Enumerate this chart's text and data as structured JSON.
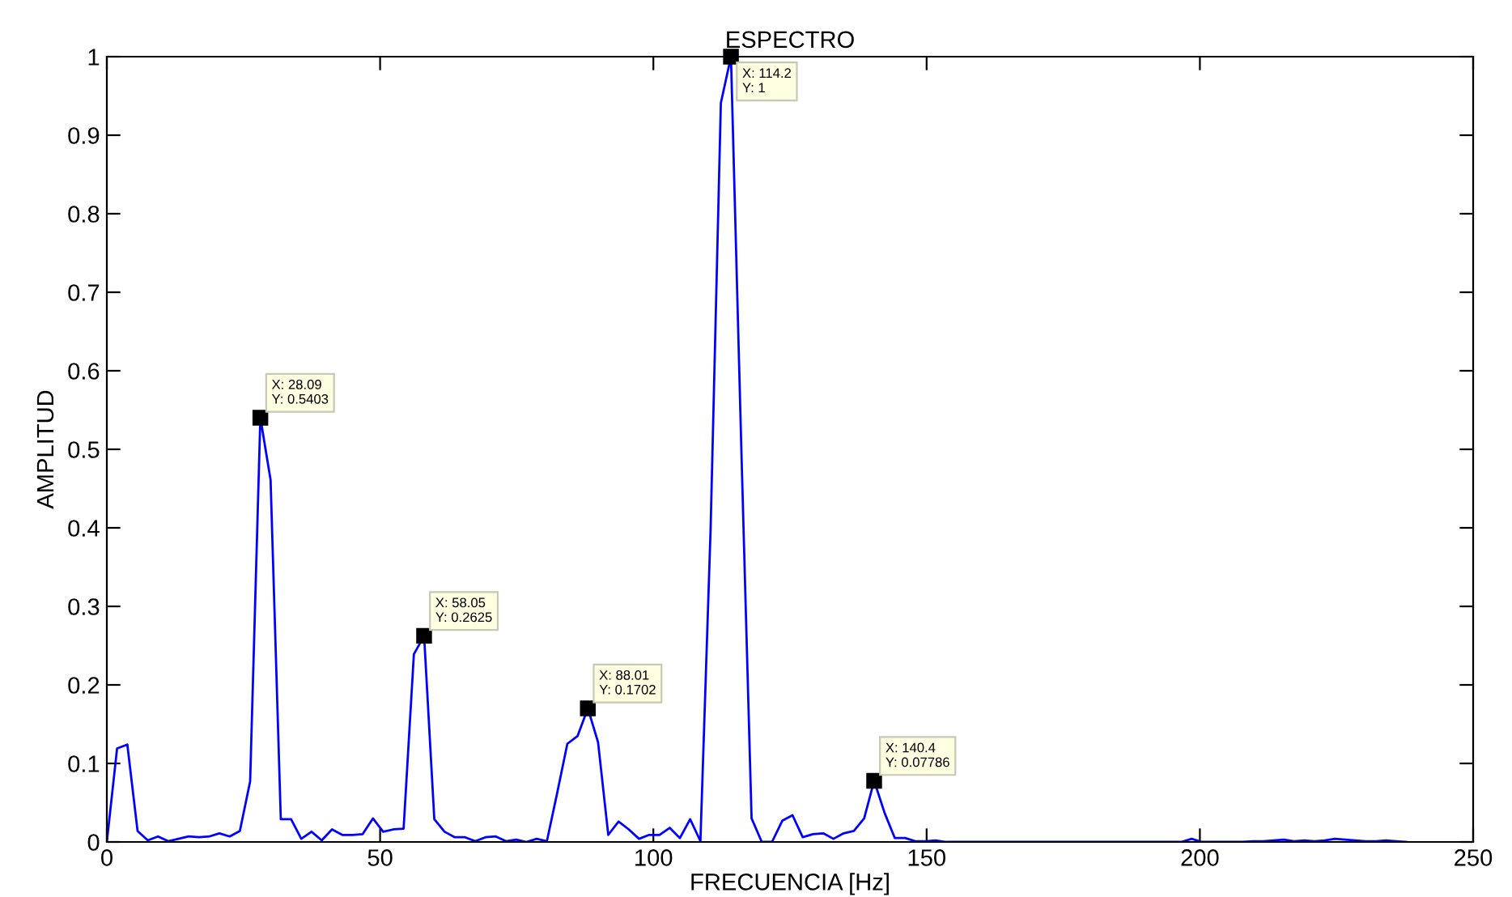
{
  "chart_data": {
    "type": "line",
    "title": "ESPECTRO",
    "xlabel": "FRECUENCIA [Hz]",
    "ylabel": "AMPLITUD",
    "x": [
      0,
      1.87,
      3.75,
      5.62,
      7.49,
      9.36,
      11.24,
      13.11,
      14.98,
      16.85,
      18.73,
      20.6,
      22.47,
      24.34,
      26.22,
      28.09,
      29.96,
      31.83,
      33.71,
      35.58,
      37.45,
      39.32,
      41.2,
      43.07,
      44.94,
      46.81,
      48.69,
      50.56,
      52.43,
      54.3,
      56.18,
      58.05,
      59.92,
      61.79,
      63.67,
      65.54,
      67.41,
      69.28,
      71.16,
      73.03,
      74.9,
      76.77,
      78.65,
      80.52,
      82.39,
      84.26,
      86.14,
      88.01,
      89.88,
      91.75,
      93.63,
      95.5,
      97.37,
      99.24,
      101.12,
      102.99,
      104.86,
      106.73,
      108.61,
      110.48,
      112.35,
      114.2,
      116.1,
      117.97,
      119.84,
      121.71,
      123.59,
      125.46,
      127.33,
      129.2,
      131.08,
      132.95,
      134.82,
      136.69,
      138.57,
      140.4,
      142.31,
      144.18,
      146.06,
      147.93,
      149.8,
      151.67,
      153.55,
      155.42,
      157.29,
      159.16,
      161.04,
      162.91,
      164.78,
      166.65,
      168.53,
      170.4,
      172.27,
      174.14,
      176.02,
      177.89,
      179.76,
      181.63,
      183.51,
      185.38,
      187.25,
      189.12,
      191.0,
      192.87,
      194.74,
      196.61,
      198.49,
      200.36,
      202.23,
      204.1,
      205.98,
      207.85,
      209.72,
      211.59,
      213.47,
      215.34,
      217.21,
      219.08,
      220.96,
      222.83,
      224.7,
      226.57,
      228.45,
      230.32,
      232.19,
      234.06,
      235.94,
      237.81
    ],
    "series": [
      {
        "color": "#0000ff",
        "values": [
          0,
          0.119,
          0.124,
          0.014,
          0.002,
          0.007,
          0.001,
          0.004,
          0.007,
          0.006,
          0.007,
          0.011,
          0.007,
          0.014,
          0.077,
          0.5403,
          0.461,
          0.029,
          0.029,
          0.004,
          0.013,
          0.002,
          0.016,
          0.009,
          0.009,
          0.01,
          0.03,
          0.013,
          0.016,
          0.017,
          0.239,
          0.2625,
          0.029,
          0.013,
          0.006,
          0.006,
          0.001,
          0.006,
          0.007,
          0.001,
          0.003,
          0,
          0.004,
          0.001,
          0.062,
          0.125,
          0.135,
          0.1702,
          0.127,
          0.009,
          0.026,
          0.016,
          0.004,
          0.009,
          0.009,
          0.018,
          0.005,
          0.029,
          0.001,
          0.4,
          0.941,
          1,
          0.5,
          0.03,
          0,
          0,
          0.027,
          0.034,
          0.006,
          0.01,
          0.011,
          0.004,
          0.011,
          0.014,
          0.03,
          0.07786,
          0.037,
          0.005,
          0.005,
          0.001,
          0.001,
          0.002,
          0,
          0,
          0,
          0,
          0,
          0,
          0,
          0,
          0,
          0,
          0,
          0,
          0,
          0,
          0,
          0,
          0,
          0,
          0,
          0,
          0,
          0,
          0,
          0,
          0.004,
          0,
          0,
          0,
          0,
          0,
          0.001,
          0.001,
          0.002,
          0.003,
          0.001,
          0.002,
          0.001,
          0.002,
          0.004,
          0.003,
          0.002,
          0.001,
          0.001,
          0.002,
          0.001,
          0
        ]
      }
    ],
    "xlim": [
      0,
      250
    ],
    "xticks": [
      0,
      50,
      100,
      150,
      200,
      250
    ],
    "ylim": [
      0,
      1
    ],
    "yticks": [
      0,
      0.1,
      0.2,
      0.3,
      0.4,
      0.5,
      0.6,
      0.7,
      0.8,
      0.9,
      1
    ],
    "grid": false,
    "marker": "none",
    "line_style": "solid",
    "annotations": [
      {
        "text": "X: 28.09\nY: 0.5403",
        "x": 28.09,
        "y": 0.5403
      },
      {
        "text": "X: 58.05\nY: 0.2625",
        "x": 58.05,
        "y": 0.2625
      },
      {
        "text": "X: 88.01\nY: 0.1702",
        "x": 88.01,
        "y": 0.1702
      },
      {
        "text": "X: 114.2\nY: 1",
        "x": 114.2,
        "y": 1
      },
      {
        "text": "X: 140.4\nY: 0.07786",
        "x": 140.4,
        "y": 0.07786
      }
    ]
  }
}
